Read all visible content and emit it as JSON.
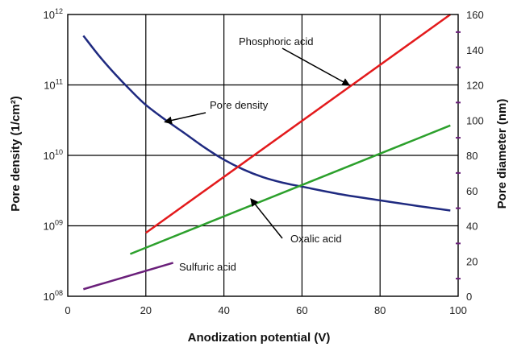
{
  "chart_data": {
    "type": "line",
    "xlabel": "Anodization potential (V)",
    "ylabel_left": "Pore density (1/cm²)",
    "ylabel_right": "Pore diameter (nm)",
    "xlim": [
      0,
      100
    ],
    "x_ticks": [
      0,
      20,
      40,
      60,
      80,
      100
    ],
    "y_left_scale": "log",
    "y_left_lim": [
      100000000.0,
      1000000000000.0
    ],
    "y_left_ticks": [
      {
        "value": 100000000.0,
        "base": "10",
        "exp": "08"
      },
      {
        "value": 1000000000.0,
        "base": "10",
        "exp": "09"
      },
      {
        "value": 10000000000.0,
        "base": "10",
        "exp": "10"
      },
      {
        "value": 100000000000.0,
        "base": "10",
        "exp": "11"
      },
      {
        "value": 1000000000000.0,
        "base": "10",
        "exp": "12"
      }
    ],
    "y_right_lim": [
      0,
      160
    ],
    "y_right_ticks": [
      0,
      20,
      40,
      60,
      80,
      100,
      120,
      140,
      160
    ],
    "grid": true,
    "series": [
      {
        "name": "Pore density",
        "axis": "left",
        "color": "#1f2a80",
        "x": [
          4,
          8,
          12,
          16,
          20,
          25,
          30,
          35,
          40,
          45,
          50,
          55,
          60,
          70,
          80,
          90,
          98
        ],
        "y": [
          500000000000.0,
          260000000000.0,
          145000000000.0,
          85000000000.0,
          52000000000.0,
          32000000000.0,
          20500000000.0,
          13000000000.0,
          8700000000.0,
          6300000000.0,
          4900000000.0,
          4100000000.0,
          3600000000.0,
          2800000000.0,
          2300000000.0,
          1900000000.0,
          1650000000.0
        ]
      },
      {
        "name": "Phosphoric acid",
        "axis": "right",
        "color": "#e31a1c",
        "x": [
          20,
          98
        ],
        "y": [
          36,
          160
        ]
      },
      {
        "name": "Oxalic acid",
        "axis": "right",
        "color": "#2ca02c",
        "x": [
          16,
          98
        ],
        "y": [
          24,
          97
        ]
      },
      {
        "name": "Sulfuric acid",
        "axis": "right",
        "color": "#6a1f7a",
        "x": [
          4,
          27
        ],
        "y": [
          4,
          19
        ]
      }
    ],
    "annotations": [
      {
        "text": "Phosphoric acid",
        "series": "Phosphoric acid",
        "arrow_to": [
          72,
          120
        ]
      },
      {
        "text": "Pore density",
        "series": "Pore density",
        "arrow_to": [
          25,
          30000000000.0
        ]
      },
      {
        "text": "Oxalic acid",
        "series": "Oxalic acid",
        "arrow_to": [
          47,
          55
        ]
      },
      {
        "text": "Sulfuric acid",
        "series": "Sulfuric acid",
        "arrow_to": null
      }
    ],
    "right_axis_marker_color": "#6a1f7a"
  }
}
